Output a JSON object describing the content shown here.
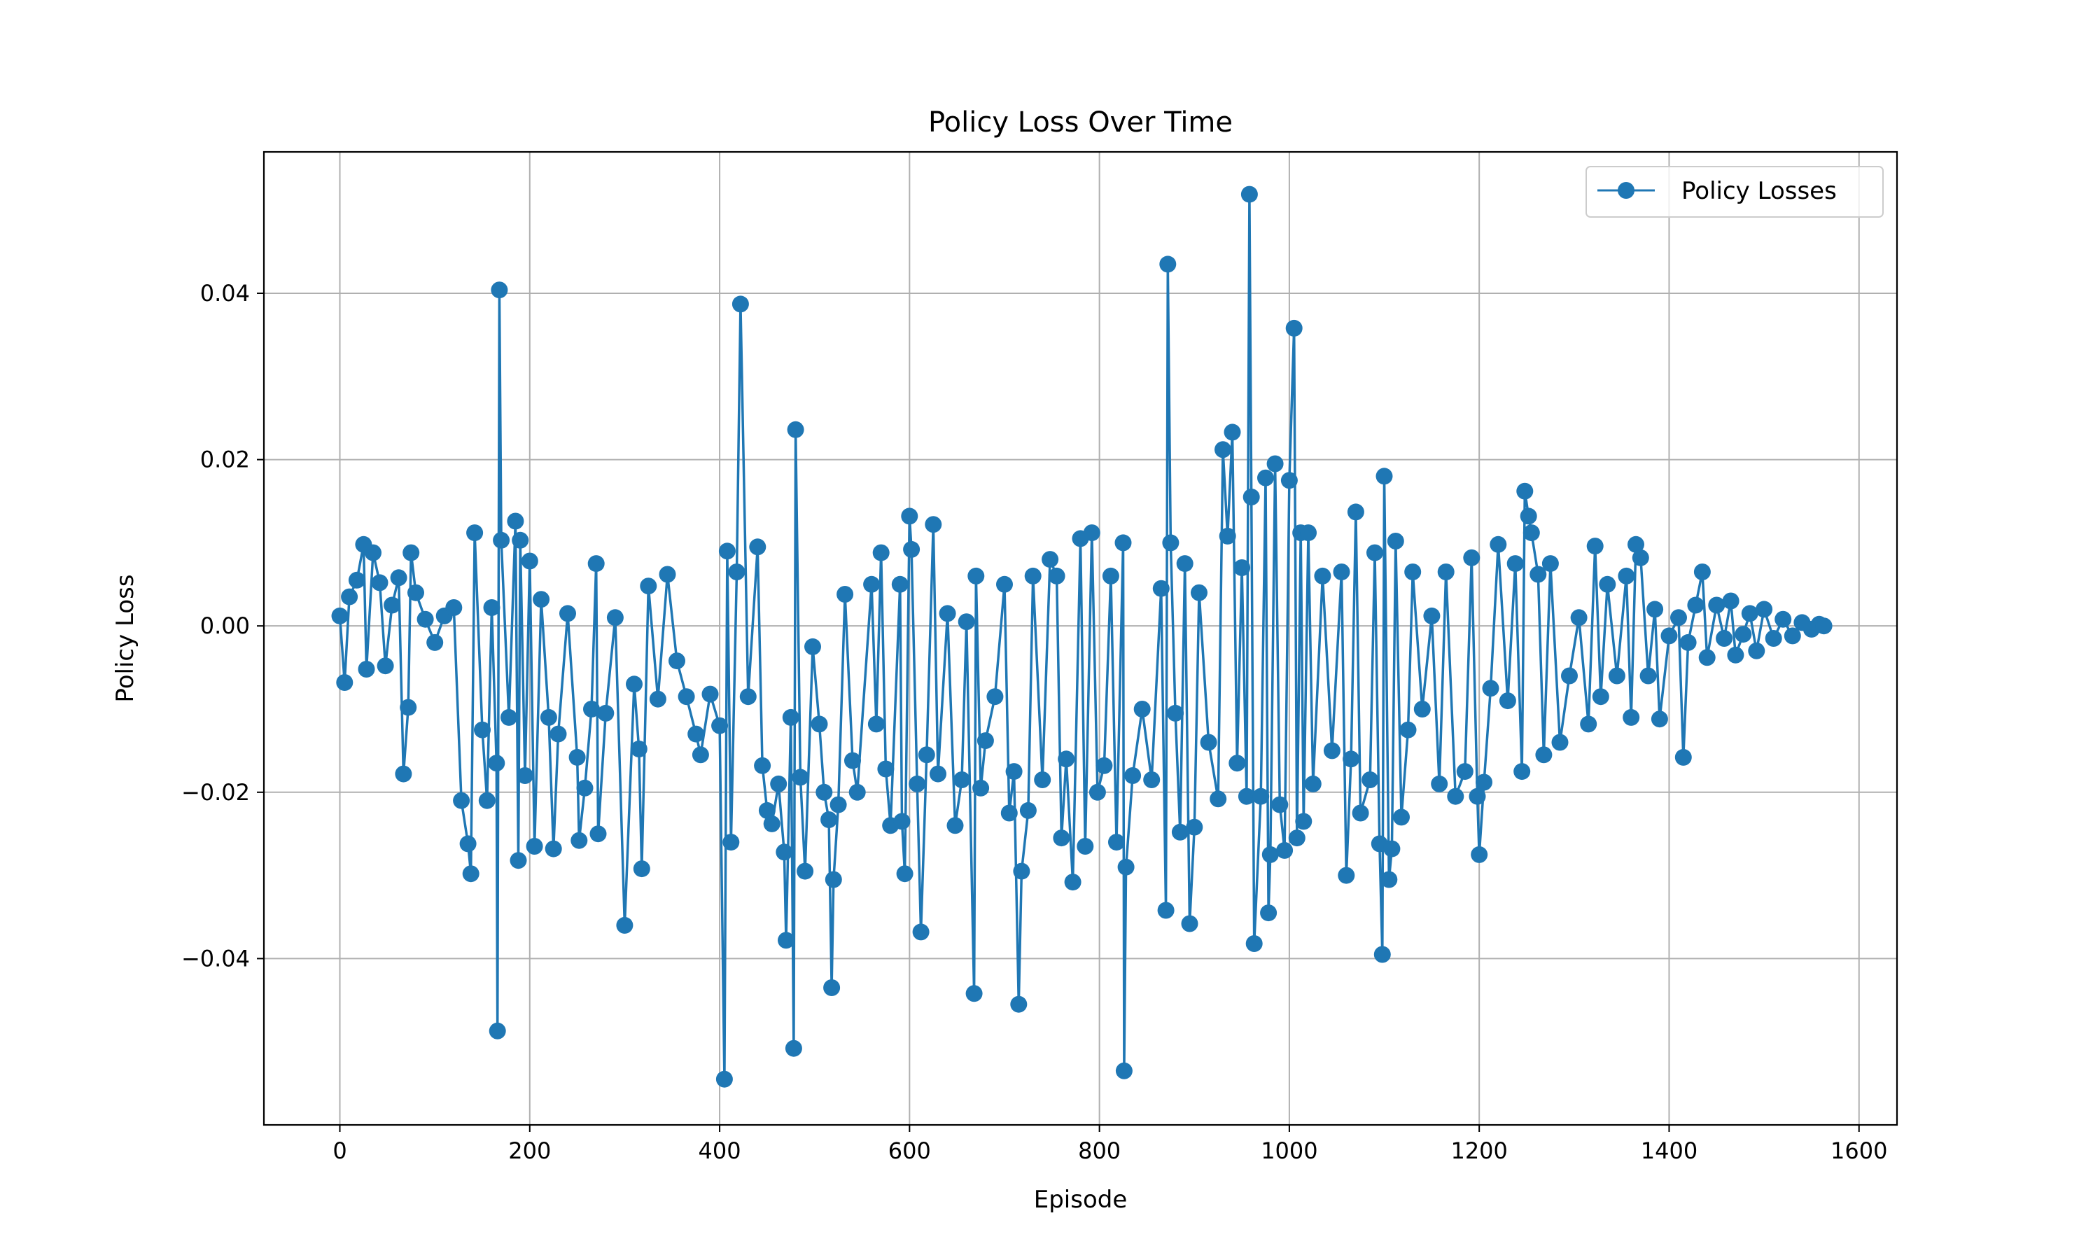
{
  "chart_data": {
    "type": "line",
    "title": "Policy Loss Over Time",
    "xlabel": "Episode",
    "ylabel": "Policy Loss",
    "xlim": [
      -80,
      1640
    ],
    "ylim": [
      -0.06,
      0.057
    ],
    "xticks": [
      0,
      200,
      400,
      600,
      800,
      1000,
      1200,
      1400,
      1600
    ],
    "xtick_labels": [
      "0",
      "200",
      "400",
      "600",
      "800",
      "1000",
      "1200",
      "1400",
      "1600"
    ],
    "yticks": [
      -0.04,
      -0.02,
      0.0,
      0.02,
      0.04
    ],
    "ytick_labels": [
      "−0.04",
      "−0.02",
      "0.00",
      "0.02",
      "0.04"
    ],
    "grid": true,
    "legend_position": "top-right",
    "series": [
      {
        "name": "Policy Losses",
        "color": "#1f77b4",
        "marker": "circle",
        "points": [
          [
            0,
            0.0012
          ],
          [
            5,
            -0.0068
          ],
          [
            10,
            0.0035
          ],
          [
            18,
            0.0055
          ],
          [
            25,
            0.0098
          ],
          [
            28,
            -0.0052
          ],
          [
            35,
            0.0088
          ],
          [
            42,
            0.0052
          ],
          [
            48,
            -0.0048
          ],
          [
            55,
            0.0025
          ],
          [
            62,
            0.0058
          ],
          [
            67,
            -0.0178
          ],
          [
            72,
            -0.0098
          ],
          [
            75,
            0.0088
          ],
          [
            80,
            0.004
          ],
          [
            90,
            0.0008
          ],
          [
            100,
            -0.002
          ],
          [
            110,
            0.0012
          ],
          [
            120,
            0.0022
          ],
          [
            128,
            -0.021
          ],
          [
            135,
            -0.0262
          ],
          [
            138,
            -0.0298
          ],
          [
            142,
            0.0112
          ],
          [
            150,
            -0.0125
          ],
          [
            155,
            -0.021
          ],
          [
            160,
            0.0022
          ],
          [
            165,
            -0.0165
          ],
          [
            166,
            -0.0487
          ],
          [
            168,
            0.0404
          ],
          [
            170,
            0.0103
          ],
          [
            178,
            -0.011
          ],
          [
            185,
            0.0126
          ],
          [
            188,
            -0.0282
          ],
          [
            190,
            0.0103
          ],
          [
            195,
            -0.018
          ],
          [
            200,
            0.0078
          ],
          [
            205,
            -0.0265
          ],
          [
            212,
            0.0032
          ],
          [
            220,
            -0.011
          ],
          [
            225,
            -0.0268
          ],
          [
            230,
            -0.013
          ],
          [
            240,
            0.0015
          ],
          [
            250,
            -0.0158
          ],
          [
            252,
            -0.0258
          ],
          [
            258,
            -0.0195
          ],
          [
            265,
            -0.01
          ],
          [
            270,
            0.0075
          ],
          [
            272,
            -0.025
          ],
          [
            280,
            -0.0105
          ],
          [
            290,
            0.001
          ],
          [
            300,
            -0.036
          ],
          [
            310,
            -0.007
          ],
          [
            315,
            -0.0148
          ],
          [
            318,
            -0.0292
          ],
          [
            325,
            0.0048
          ],
          [
            335,
            -0.0088
          ],
          [
            345,
            0.0062
          ],
          [
            355,
            -0.0042
          ],
          [
            365,
            -0.0085
          ],
          [
            375,
            -0.013
          ],
          [
            380,
            -0.0155
          ],
          [
            390,
            -0.0082
          ],
          [
            400,
            -0.012
          ],
          [
            405,
            -0.0545
          ],
          [
            408,
            0.009
          ],
          [
            412,
            -0.026
          ],
          [
            418,
            0.0065
          ],
          [
            422,
            0.0387
          ],
          [
            430,
            -0.0085
          ],
          [
            440,
            0.0095
          ],
          [
            445,
            -0.0168
          ],
          [
            450,
            -0.0222
          ],
          [
            455,
            -0.0238
          ],
          [
            462,
            -0.019
          ],
          [
            468,
            -0.0272
          ],
          [
            470,
            -0.0378
          ],
          [
            475,
            -0.011
          ],
          [
            478,
            -0.0508
          ],
          [
            480,
            0.0236
          ],
          [
            485,
            -0.0182
          ],
          [
            490,
            -0.0295
          ],
          [
            498,
            -0.0025
          ],
          [
            505,
            -0.0118
          ],
          [
            510,
            -0.02
          ],
          [
            515,
            -0.0233
          ],
          [
            518,
            -0.0435
          ],
          [
            520,
            -0.0305
          ],
          [
            525,
            -0.0215
          ],
          [
            532,
            0.0038
          ],
          [
            540,
            -0.0162
          ],
          [
            545,
            -0.02
          ],
          [
            560,
            0.005
          ],
          [
            565,
            -0.0118
          ],
          [
            570,
            0.0088
          ],
          [
            575,
            -0.0172
          ],
          [
            580,
            -0.024
          ],
          [
            590,
            0.005
          ],
          [
            592,
            -0.0235
          ],
          [
            595,
            -0.0298
          ],
          [
            600,
            0.0132
          ],
          [
            602,
            0.0092
          ],
          [
            608,
            -0.019
          ],
          [
            612,
            -0.0368
          ],
          [
            618,
            -0.0155
          ],
          [
            625,
            0.0122
          ],
          [
            630,
            -0.0178
          ],
          [
            640,
            0.0015
          ],
          [
            648,
            -0.024
          ],
          [
            655,
            -0.0185
          ],
          [
            660,
            0.0005
          ],
          [
            668,
            -0.0442
          ],
          [
            670,
            0.006
          ],
          [
            675,
            -0.0195
          ],
          [
            680,
            -0.0138
          ],
          [
            690,
            -0.0085
          ],
          [
            700,
            0.005
          ],
          [
            705,
            -0.0225
          ],
          [
            710,
            -0.0175
          ],
          [
            715,
            -0.0455
          ],
          [
            718,
            -0.0295
          ],
          [
            725,
            -0.0222
          ],
          [
            730,
            0.006
          ],
          [
            740,
            -0.0185
          ],
          [
            748,
            0.008
          ],
          [
            755,
            0.006
          ],
          [
            760,
            -0.0255
          ],
          [
            765,
            -0.016
          ],
          [
            772,
            -0.0308
          ],
          [
            780,
            0.0105
          ],
          [
            785,
            -0.0265
          ],
          [
            792,
            0.0112
          ],
          [
            798,
            -0.02
          ],
          [
            805,
            -0.0168
          ],
          [
            812,
            0.006
          ],
          [
            818,
            -0.026
          ],
          [
            825,
            0.01
          ],
          [
            826,
            -0.0535
          ],
          [
            828,
            -0.029
          ],
          [
            835,
            -0.018
          ],
          [
            845,
            -0.01
          ],
          [
            855,
            -0.0185
          ],
          [
            865,
            0.0045
          ],
          [
            870,
            -0.0342
          ],
          [
            872,
            0.0435
          ],
          [
            875,
            0.01
          ],
          [
            880,
            -0.0105
          ],
          [
            885,
            -0.0248
          ],
          [
            890,
            0.0075
          ],
          [
            895,
            -0.0358
          ],
          [
            900,
            -0.0242
          ],
          [
            905,
            0.004
          ],
          [
            915,
            -0.014
          ],
          [
            925,
            -0.0208
          ],
          [
            930,
            0.0212
          ],
          [
            935,
            0.0108
          ],
          [
            940,
            0.0233
          ],
          [
            945,
            -0.0165
          ],
          [
            950,
            0.007
          ],
          [
            955,
            -0.0205
          ],
          [
            958,
            0.0519
          ],
          [
            960,
            0.0155
          ],
          [
            963,
            -0.0382
          ],
          [
            970,
            -0.0205
          ],
          [
            975,
            0.0178
          ],
          [
            978,
            -0.0345
          ],
          [
            980,
            -0.0275
          ],
          [
            985,
            0.0195
          ],
          [
            990,
            -0.0215
          ],
          [
            995,
            -0.027
          ],
          [
            1000,
            0.0175
          ],
          [
            1005,
            0.0358
          ],
          [
            1008,
            -0.0255
          ],
          [
            1012,
            0.0112
          ],
          [
            1015,
            -0.0235
          ],
          [
            1020,
            0.0112
          ],
          [
            1025,
            -0.019
          ],
          [
            1035,
            0.006
          ],
          [
            1045,
            -0.015
          ],
          [
            1055,
            0.0065
          ],
          [
            1060,
            -0.03
          ],
          [
            1065,
            -0.016
          ],
          [
            1070,
            0.0137
          ],
          [
            1075,
            -0.0225
          ],
          [
            1085,
            -0.0185
          ],
          [
            1090,
            0.0088
          ],
          [
            1095,
            -0.0262
          ],
          [
            1098,
            -0.0395
          ],
          [
            1100,
            0.018
          ],
          [
            1105,
            -0.0305
          ],
          [
            1108,
            -0.0268
          ],
          [
            1112,
            0.0102
          ],
          [
            1118,
            -0.023
          ],
          [
            1125,
            -0.0125
          ],
          [
            1130,
            0.0065
          ],
          [
            1140,
            -0.01
          ],
          [
            1150,
            0.0012
          ],
          [
            1158,
            -0.019
          ],
          [
            1165,
            0.0065
          ],
          [
            1175,
            -0.0205
          ],
          [
            1185,
            -0.0175
          ],
          [
            1192,
            0.0082
          ],
          [
            1198,
            -0.0205
          ],
          [
            1200,
            -0.0275
          ],
          [
            1205,
            -0.0188
          ],
          [
            1212,
            -0.0075
          ],
          [
            1220,
            0.0098
          ],
          [
            1230,
            -0.009
          ],
          [
            1238,
            0.0075
          ],
          [
            1245,
            -0.0175
          ],
          [
            1248,
            0.0162
          ],
          [
            1252,
            0.0132
          ],
          [
            1255,
            0.0112
          ],
          [
            1262,
            0.0062
          ],
          [
            1268,
            -0.0155
          ],
          [
            1275,
            0.0075
          ],
          [
            1285,
            -0.014
          ],
          [
            1295,
            -0.006
          ],
          [
            1305,
            0.001
          ],
          [
            1315,
            -0.0118
          ],
          [
            1322,
            0.0096
          ],
          [
            1328,
            -0.0085
          ],
          [
            1335,
            0.005
          ],
          [
            1345,
            -0.006
          ],
          [
            1355,
            0.006
          ],
          [
            1360,
            -0.011
          ],
          [
            1365,
            0.0098
          ],
          [
            1370,
            0.0082
          ],
          [
            1378,
            -0.006
          ],
          [
            1385,
            0.002
          ],
          [
            1390,
            -0.0112
          ],
          [
            1400,
            -0.0012
          ],
          [
            1410,
            0.001
          ],
          [
            1415,
            -0.0158
          ],
          [
            1420,
            -0.002
          ],
          [
            1428,
            0.0025
          ],
          [
            1435,
            0.0065
          ],
          [
            1440,
            -0.0038
          ],
          [
            1450,
            0.0025
          ],
          [
            1458,
            -0.0015
          ],
          [
            1465,
            0.003
          ],
          [
            1470,
            -0.0035
          ],
          [
            1478,
            -0.001
          ],
          [
            1485,
            0.0015
          ],
          [
            1492,
            -0.003
          ],
          [
            1500,
            0.002
          ],
          [
            1510,
            -0.0015
          ],
          [
            1520,
            0.0008
          ],
          [
            1530,
            -0.0012
          ],
          [
            1540,
            0.0004
          ],
          [
            1550,
            -0.0004
          ],
          [
            1558,
            0.0002
          ],
          [
            1563,
            0.0
          ]
        ]
      }
    ]
  }
}
